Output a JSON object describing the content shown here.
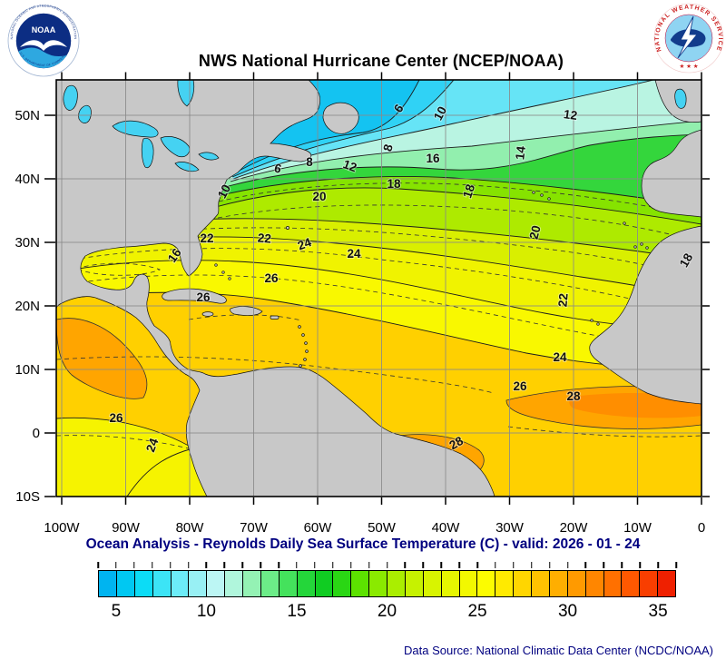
{
  "header": {
    "title": "NWS National Hurricane Center (NCEP/NOAA)",
    "noaa_logo": {
      "name": "NOAA",
      "rim_top": "NATIONAL OCEANIC AND ATMOSPHERIC ADMINISTRATION",
      "rim_bottom": "U.S. DEPARTMENT OF COMMERCE"
    },
    "nws_logo": {
      "rim": "NATIONAL WEATHER SERVICE",
      "stars": "★ ★ ★"
    }
  },
  "map": {
    "x_tick_labels": [
      "100W",
      "90W",
      "80W",
      "70W",
      "60W",
      "50W",
      "40W",
      "30W",
      "20W",
      "10W",
      "0"
    ],
    "y_tick_labels": [
      "50N",
      "40N",
      "30N",
      "20N",
      "10N",
      "0",
      "10S"
    ],
    "contour_labels": [
      "6",
      "10",
      "12",
      "8",
      "14",
      "16",
      "6",
      "8",
      "12",
      "18",
      "10",
      "20",
      "18",
      "20",
      "18",
      "22",
      "22",
      "24",
      "24",
      "22",
      "16",
      "26",
      "26",
      "24",
      "26",
      "28",
      "28",
      "26",
      "24"
    ],
    "land_color": "#c8c8c8",
    "lake_color": "#45d2f2",
    "grid_color": "#8a8a8a",
    "contour_color": "#1c1c1c",
    "bands": {
      "b29": "#ff8e00",
      "b28": "#ffa500",
      "b26_28": "#ffd000",
      "b24_26": "#f9f800",
      "b22_24": "#f0f300",
      "b20_22": "#d9ef00",
      "b18_20": "#aeea00",
      "b16_18": "#86e300",
      "b14_16": "#34d63c",
      "b12_14": "#92efae",
      "b10_12": "#b9f4e2",
      "b8_10": "#66e4f6",
      "b6_8": "#30d2f5",
      "b_lt6": "#14c3f1",
      "pac_yellow": "#f6f300"
    }
  },
  "footer": {
    "subtitle": "Ocean Analysis - Reynolds Daily Sea Surface Temperature (C) - valid: 2026 - 01 - 24",
    "data_source": "Data Source: National Climatic Data Center (NCDC/NOAA)",
    "colorbar": {
      "min": 4,
      "max": 36,
      "tick_values": [
        5,
        10,
        15,
        20,
        25,
        30,
        35
      ],
      "tick_labels": [
        "5",
        "10",
        "15",
        "20",
        "25",
        "30",
        "35"
      ],
      "segment_colors": [
        "#00b4f0",
        "#00c8f2",
        "#0cdcf6",
        "#3ce4f6",
        "#6cecf8",
        "#98f0f4",
        "#bcf6f4",
        "#b0f6dc",
        "#94f2b4",
        "#6cec88",
        "#44e25c",
        "#24d63a",
        "#10cc22",
        "#2ad614",
        "#5ce200",
        "#8aea00",
        "#aaee00",
        "#c6f200",
        "#d8f400",
        "#e6f600",
        "#f2f800",
        "#fcfc00",
        "#ffea00",
        "#ffd600",
        "#ffc200",
        "#ffae00",
        "#ff9a00",
        "#ff8600",
        "#ff7000",
        "#ff5800",
        "#f93e00",
        "#ef2000"
      ]
    }
  },
  "chart_data": {
    "type": "heatmap",
    "title": "NWS National Hurricane Center (NCEP/NOAA)",
    "subtitle": "Ocean Analysis - Reynolds Daily Sea Surface Temperature (C) - valid: 2026 - 01 - 24",
    "units": "C",
    "x_axis_ticks": [
      "100W",
      "90W",
      "80W",
      "70W",
      "60W",
      "50W",
      "40W",
      "30W",
      "20W",
      "10W",
      "0"
    ],
    "y_axis_ticks": [
      "10S",
      "0",
      "10N",
      "20N",
      "30N",
      "40N",
      "50N"
    ],
    "contour_interval": 2,
    "contour_values_shown": [
      6,
      8,
      10,
      12,
      14,
      16,
      18,
      20,
      22,
      24,
      26,
      28
    ],
    "colorbar_range": [
      4,
      36
    ],
    "colorbar_ticks": [
      5,
      10,
      15,
      20,
      25,
      30,
      35
    ],
    "data_source": "Data Source: National Climatic Data Center (NCDC/NOAA)"
  }
}
